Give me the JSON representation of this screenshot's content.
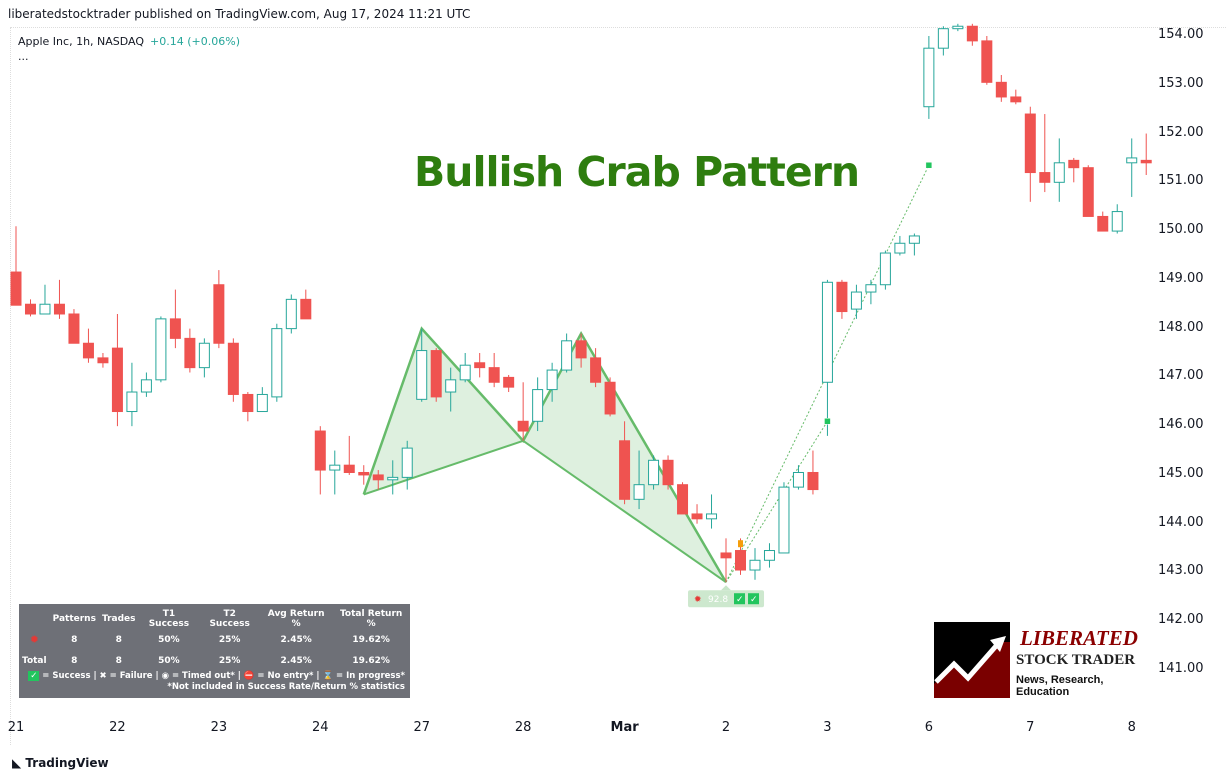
{
  "header": {
    "published": "liberatedstocktrader published on TradingView.com, Aug 17, 2024 11:21 UTC"
  },
  "legend": {
    "symbol": "Apple Inc, 1h, NASDAQ",
    "change": "+0.14 (+0.06%)",
    "more": "..."
  },
  "annotation_title": "Bullish Crab Pattern",
  "pattern_label": {
    "value": "92.8",
    "icon": "crab-icon",
    "checks": [
      "check-icon",
      "check-icon"
    ]
  },
  "stats": {
    "headers": [
      "",
      "Patterns",
      "Trades",
      "T1 Success",
      "T2 Success",
      "Avg Return %",
      "Total Return %"
    ],
    "rows": [
      {
        "label_icon": "crab-icon",
        "cells": [
          "8",
          "8",
          "50%",
          "25%",
          "2.45%",
          "19.62%"
        ]
      },
      {
        "label": "Total",
        "cells": [
          "8",
          "8",
          "50%",
          "25%",
          "2.45%",
          "19.62%"
        ]
      }
    ],
    "legend": "= Success | ✖ = Failure | ◉ = Timed out* | ⛔ = No entry* | ⌛ = In progress*",
    "note": "*Not included in Success Rate/Return % statistics"
  },
  "logo": {
    "line1": "LIBERATED",
    "line2": "STOCK TRADER",
    "line3": "News, Research, Education"
  },
  "footer": {
    "brand": "TradingView"
  },
  "colors": {
    "up": "#26a69a",
    "down": "#ef5350",
    "pattern": "#66bb6a",
    "pattern_fill": "#c8e6c9",
    "title": "#2e7d0f"
  },
  "chart_data": {
    "type": "candlestick",
    "ylim": [
      140.4,
      154.3
    ],
    "y_ticks": [
      "141.00",
      "142.00",
      "143.00",
      "144.00",
      "145.00",
      "146.00",
      "147.00",
      "148.00",
      "149.00",
      "150.00",
      "151.00",
      "152.00",
      "153.00",
      "154.00"
    ],
    "x_ticks": [
      {
        "label": "21",
        "bar": 1
      },
      {
        "label": "22",
        "bar": 8
      },
      {
        "label": "23",
        "bar": 15
      },
      {
        "label": "24",
        "bar": 22
      },
      {
        "label": "27",
        "bar": 29
      },
      {
        "label": "28",
        "bar": 36
      },
      {
        "label": "Mar",
        "bar": 43
      },
      {
        "label": "2",
        "bar": 50
      },
      {
        "label": "3",
        "bar": 57
      },
      {
        "label": "6",
        "bar": 64
      },
      {
        "label": "7",
        "bar": 71
      },
      {
        "label": "8",
        "bar": 78
      }
    ],
    "candles_ohlc": [
      [
        149.16,
        150.1,
        148.5,
        148.48
      ],
      [
        148.5,
        148.6,
        148.25,
        148.3
      ],
      [
        148.3,
        148.9,
        148.3,
        148.5
      ],
      [
        148.5,
        149.0,
        148.2,
        148.3
      ],
      [
        148.3,
        148.4,
        147.7,
        147.7
      ],
      [
        147.7,
        148.0,
        147.3,
        147.4
      ],
      [
        147.4,
        147.5,
        147.2,
        147.3
      ],
      [
        147.6,
        148.3,
        146.0,
        146.3
      ],
      [
        146.3,
        147.3,
        146.0,
        146.7
      ],
      [
        146.7,
        147.1,
        146.6,
        146.95
      ],
      [
        146.95,
        148.25,
        146.9,
        148.2
      ],
      [
        148.2,
        148.8,
        147.6,
        147.8
      ],
      [
        147.8,
        148.0,
        147.1,
        147.2
      ],
      [
        147.2,
        147.8,
        147.0,
        147.7
      ],
      [
        148.9,
        149.2,
        147.6,
        147.7
      ],
      [
        147.7,
        147.8,
        146.5,
        146.65
      ],
      [
        146.65,
        146.7,
        146.1,
        146.3
      ],
      [
        146.3,
        146.8,
        146.3,
        146.65
      ],
      [
        146.6,
        148.1,
        146.5,
        148.0
      ],
      [
        148.0,
        148.7,
        147.9,
        148.6
      ],
      [
        148.6,
        148.8,
        148.2,
        148.2
      ],
      [
        145.9,
        146.0,
        144.6,
        145.1
      ],
      [
        145.1,
        145.5,
        144.6,
        145.2
      ],
      [
        145.2,
        145.8,
        145.0,
        145.05
      ],
      [
        145.05,
        145.2,
        144.8,
        145.0
      ],
      [
        145.0,
        145.1,
        144.7,
        144.9
      ],
      [
        144.9,
        145.3,
        144.6,
        144.95
      ],
      [
        144.95,
        145.7,
        144.7,
        145.55
      ],
      [
        146.55,
        148.0,
        146.5,
        147.55
      ],
      [
        147.55,
        147.6,
        146.5,
        146.6
      ],
      [
        146.7,
        147.2,
        146.3,
        146.95
      ],
      [
        146.95,
        147.5,
        146.9,
        147.25
      ],
      [
        147.3,
        147.5,
        147.0,
        147.2
      ],
      [
        147.2,
        147.5,
        146.8,
        146.9
      ],
      [
        147.0,
        147.05,
        146.7,
        146.8
      ],
      [
        146.1,
        146.9,
        145.7,
        145.9
      ],
      [
        146.1,
        147.0,
        145.9,
        146.75
      ],
      [
        146.75,
        147.3,
        146.5,
        147.15
      ],
      [
        147.15,
        147.9,
        147.1,
        147.75
      ],
      [
        147.75,
        147.9,
        147.2,
        147.4
      ],
      [
        147.4,
        147.6,
        146.8,
        146.9
      ],
      [
        146.9,
        147.0,
        146.2,
        146.25
      ],
      [
        145.7,
        146.1,
        144.4,
        144.5
      ],
      [
        144.5,
        145.5,
        144.3,
        144.8
      ],
      [
        144.8,
        145.4,
        144.7,
        145.3
      ],
      [
        145.3,
        145.4,
        144.7,
        144.8
      ],
      [
        144.8,
        144.85,
        144.2,
        144.2
      ],
      [
        144.2,
        144.4,
        144.0,
        144.1
      ],
      [
        144.1,
        144.6,
        143.9,
        144.2
      ],
      [
        143.4,
        143.7,
        142.8,
        143.3
      ],
      [
        143.45,
        143.7,
        142.95,
        143.05
      ],
      [
        143.05,
        143.5,
        142.85,
        143.25
      ],
      [
        143.25,
        143.6,
        143.1,
        143.45
      ],
      [
        143.4,
        144.85,
        143.4,
        144.75
      ],
      [
        144.75,
        145.2,
        144.7,
        145.05
      ],
      [
        145.05,
        145.5,
        144.6,
        144.7
      ],
      [
        146.9,
        149.0,
        145.8,
        148.95
      ],
      [
        148.95,
        149.0,
        148.2,
        148.35
      ],
      [
        148.4,
        148.9,
        148.2,
        148.75
      ],
      [
        148.75,
        149.0,
        148.5,
        148.9
      ],
      [
        148.9,
        149.6,
        148.8,
        149.55
      ],
      [
        149.55,
        149.9,
        149.5,
        149.75
      ],
      [
        149.75,
        149.95,
        149.5,
        149.9
      ],
      [
        152.55,
        154.0,
        152.3,
        153.75
      ],
      [
        153.75,
        154.2,
        153.6,
        154.15
      ],
      [
        154.15,
        154.25,
        154.1,
        154.2
      ],
      [
        154.2,
        154.25,
        153.8,
        153.9
      ],
      [
        153.9,
        154.0,
        153.0,
        153.05
      ],
      [
        153.05,
        153.2,
        152.65,
        152.75
      ],
      [
        152.75,
        152.9,
        152.6,
        152.65
      ],
      [
        152.4,
        152.55,
        150.6,
        151.2
      ],
      [
        151.2,
        152.4,
        150.8,
        151.0
      ],
      [
        151.0,
        151.9,
        150.6,
        151.4
      ],
      [
        151.45,
        151.5,
        151.0,
        151.3
      ],
      [
        151.3,
        151.35,
        150.3,
        150.3
      ],
      [
        150.3,
        150.4,
        150.0,
        150.0
      ],
      [
        150.0,
        150.55,
        149.95,
        150.4
      ],
      [
        151.4,
        151.9,
        150.7,
        151.5
      ],
      [
        151.45,
        152.0,
        151.15,
        151.4
      ]
    ],
    "pattern": {
      "name": "Bullish Crab",
      "points": [
        {
          "label": "X",
          "bar": 25,
          "price": 144.6
        },
        {
          "label": "A",
          "bar": 29,
          "price": 148.0
        },
        {
          "label": "B",
          "bar": 36,
          "price": 145.7
        },
        {
          "label": "C",
          "bar": 40,
          "price": 147.9
        },
        {
          "label": "D",
          "bar": 50,
          "price": 142.8
        }
      ],
      "targets": [
        {
          "bar": 57,
          "price": 146.1
        },
        {
          "bar": 64,
          "price": 151.35
        }
      ],
      "entry": {
        "bar": 51,
        "price": 143.6
      }
    }
  }
}
